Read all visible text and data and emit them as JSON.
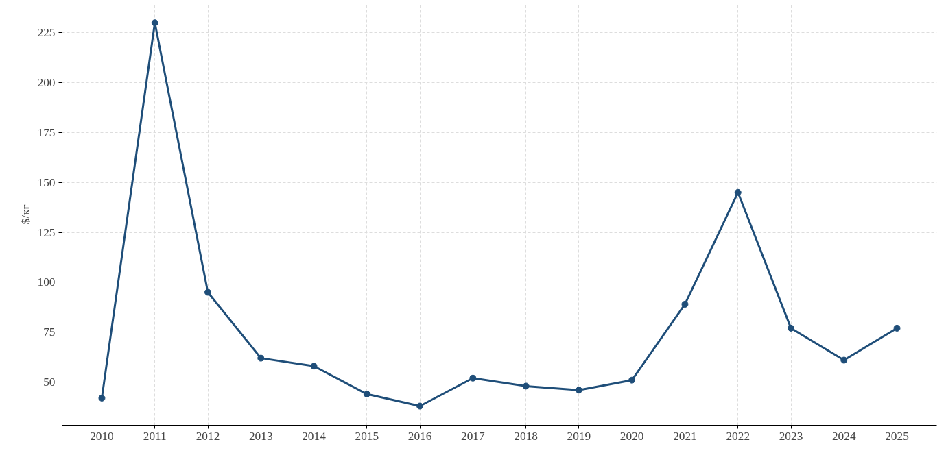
{
  "chart_data": {
    "type": "line",
    "ylabel": "$/кг",
    "categories": [
      "2010",
      "2011",
      "2012",
      "2013",
      "2014",
      "2015",
      "2016",
      "2017",
      "2018",
      "2019",
      "2020",
      "2021",
      "2022",
      "2023",
      "2024",
      "2025"
    ],
    "series": [
      {
        "color": "#1f4e79",
        "values": [
          42,
          230,
          95,
          62,
          58,
          44,
          38,
          52,
          48,
          46,
          51,
          89,
          145,
          77,
          61,
          77
        ]
      }
    ],
    "ylim": [
      28.4,
      239.5
    ],
    "yticks": [
      50,
      75,
      100,
      125,
      150,
      175,
      200,
      225
    ],
    "grid": true,
    "marker": "circle",
    "line_style": "solid"
  }
}
